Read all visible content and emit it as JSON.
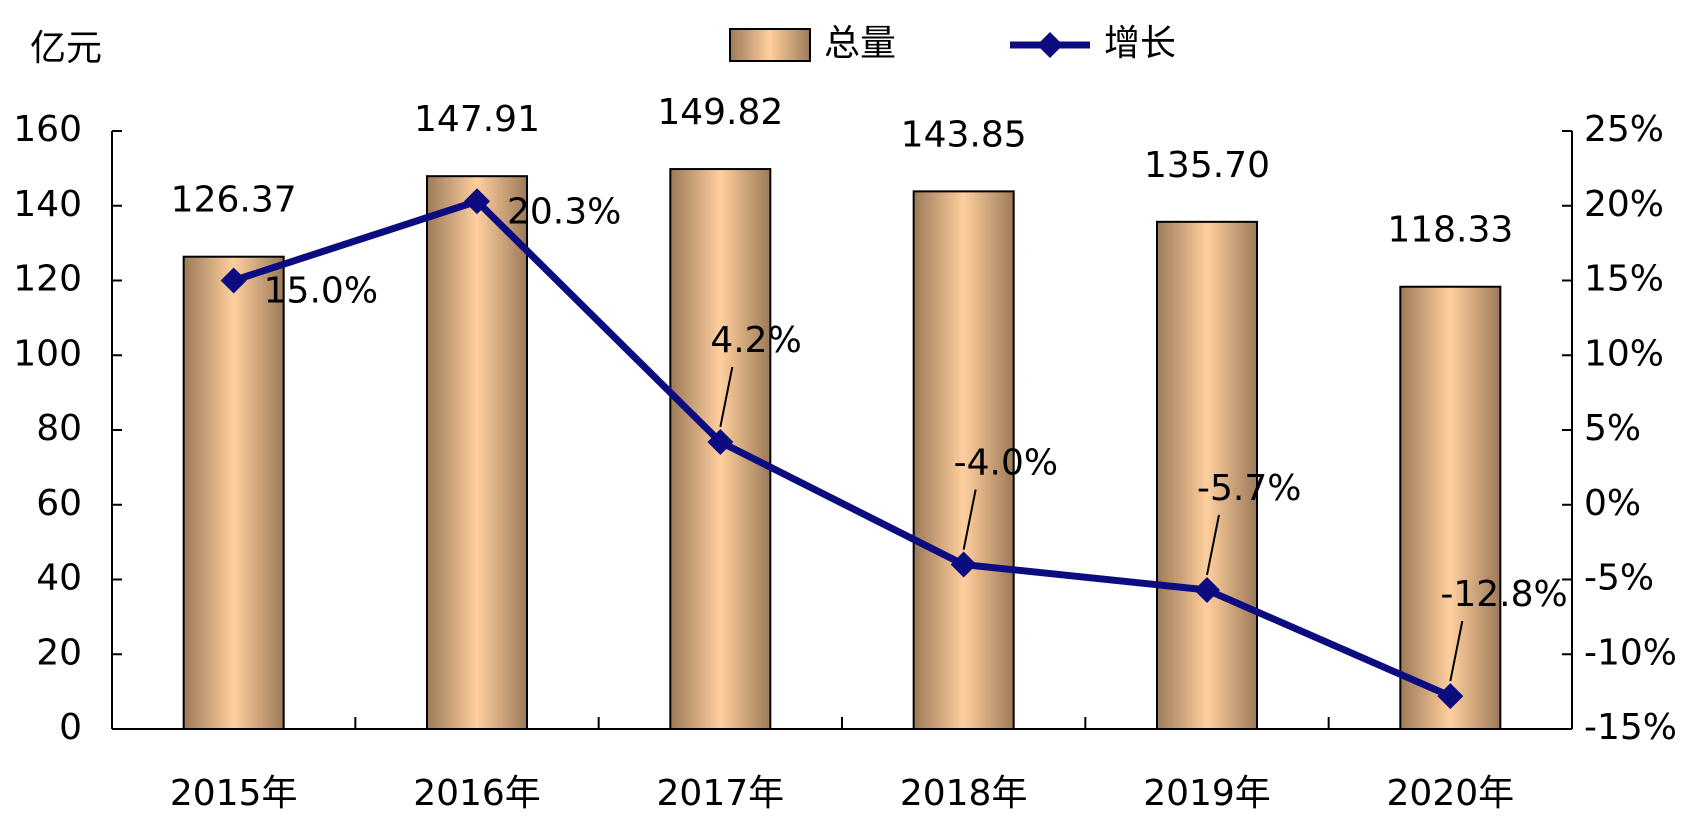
{
  "chart_data": {
    "type": "bar-line",
    "y_label": "亿元",
    "categories": [
      "2015年",
      "2016年",
      "2017年",
      "2018年",
      "2019年",
      "2020年"
    ],
    "series": [
      {
        "name": "总量",
        "type": "bar",
        "color": "#ffcf9e",
        "values": [
          126.37,
          147.91,
          149.82,
          143.85,
          135.7,
          118.33
        ],
        "value_labels": [
          "126.37",
          "147.91",
          "149.82",
          "143.85",
          "135.70",
          "118.33"
        ]
      },
      {
        "name": "增长",
        "type": "line",
        "axis": "y2",
        "color": "#0c0c80",
        "values": [
          15.0,
          20.3,
          4.2,
          -4.0,
          -5.7,
          -12.8
        ],
        "value_labels": [
          "15.0%",
          "20.3%",
          "4.2%",
          "-4.0%",
          "-5.7%",
          "-12.8%"
        ]
      }
    ],
    "ylim": [
      0,
      160
    ],
    "yticks": [
      0,
      20,
      40,
      60,
      80,
      100,
      120,
      140,
      160
    ],
    "y2lim": [
      -15,
      25
    ],
    "y2ticks": [
      {
        "value": -15,
        "label": "-15%"
      },
      {
        "value": -10,
        "label": "-10%"
      },
      {
        "value": -5,
        "label": "-5%"
      },
      {
        "value": 0,
        "label": "0%"
      },
      {
        "value": 5,
        "label": "5%"
      },
      {
        "value": 10,
        "label": "10%"
      },
      {
        "value": 15,
        "label": "15%"
      },
      {
        "value": 20,
        "label": "20%"
      },
      {
        "value": 25,
        "label": "25%"
      }
    ]
  }
}
